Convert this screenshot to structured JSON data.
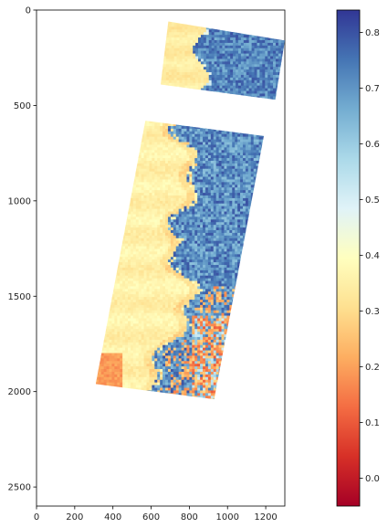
{
  "chart_data": {
    "type": "heatmap",
    "title": "",
    "xlabel": "",
    "ylabel": "",
    "xlim": [
      0,
      1300
    ],
    "ylim": [
      2600,
      0
    ],
    "y_inverted": true,
    "grid": false,
    "x_ticks": [
      0,
      200,
      400,
      600,
      800,
      1000,
      1200
    ],
    "y_ticks": [
      0,
      500,
      1000,
      1500,
      2000,
      2500
    ],
    "colormap": "RdYlBu",
    "colorbar": {
      "min": -0.05,
      "max": 0.84,
      "ticks": [
        0.0,
        0.1,
        0.2,
        0.3,
        0.4,
        0.5,
        0.6,
        0.7,
        0.8
      ],
      "tick_labels": [
        "0.0",
        "0.1",
        "0.2",
        "0.3",
        "0.4",
        "0.5",
        "0.6",
        "0.7",
        "0.8"
      ],
      "stops": [
        "#a50026",
        "#d73027",
        "#f46d43",
        "#fdae61",
        "#fee090",
        "#ffffbf",
        "#e0f3f8",
        "#abd9e9",
        "#74add1",
        "#4575b4",
        "#313695"
      ]
    },
    "regions": [
      {
        "name": "upper swath",
        "outline": [
          [
            690,
            60
          ],
          [
            1300,
            160
          ],
          [
            1250,
            470
          ],
          [
            650,
            390
          ]
        ],
        "dominant_values": {
          "west": 0.33,
          "east": 0.72
        },
        "boundary_x_approx": 860
      },
      {
        "name": "lower swath",
        "outline": [
          [
            570,
            580
          ],
          [
            1190,
            660
          ],
          [
            930,
            2040
          ],
          [
            310,
            1960
          ]
        ],
        "dominant_values": {
          "west": 0.35,
          "east": 0.7,
          "southeast": 0.15,
          "southwest_patch": 0.18
        },
        "boundary_x_approx": 780
      }
    ]
  }
}
